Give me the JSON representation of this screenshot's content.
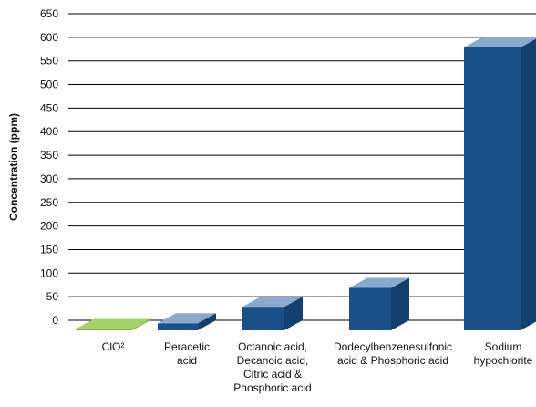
{
  "chart_data": {
    "type": "bar",
    "ylabel": "Concentration  (ppm)",
    "ylim": [
      0,
      650
    ],
    "yticks": [
      0,
      50,
      100,
      150,
      200,
      250,
      300,
      350,
      400,
      450,
      500,
      550,
      600,
      650
    ],
    "grid": true,
    "categories": [
      "ClO²",
      "Peracetic acid",
      "Octanoic acid, Decanoic acid, Citric acid & Phosphoric acid",
      "Dodecylbenzenesulfonic acid & Phosphoric acid",
      "Sodium hypochlorite"
    ],
    "category_lines": [
      [
        "ClO²"
      ],
      [
        "Peracetic",
        "acid"
      ],
      [
        "Octanoic acid,",
        "Decanoic acid,",
        "Citric acid &",
        "Phosphoric acid"
      ],
      [
        "Dodecylbenzenesulfonic",
        "acid & Phosphoric acid"
      ],
      [
        "Sodium",
        "hypochlorite"
      ]
    ],
    "values": [
      3,
      15,
      50,
      90,
      600
    ],
    "colors": {
      "green_front": "#7ab648",
      "green_top": "#a6d06a",
      "blue_front": "#1b4f88",
      "blue_side": "#13406f",
      "blue_top": "#8aa9cf",
      "grid": "#000000"
    },
    "bar_colors": [
      "green",
      "blue",
      "blue",
      "blue",
      "blue"
    ]
  }
}
